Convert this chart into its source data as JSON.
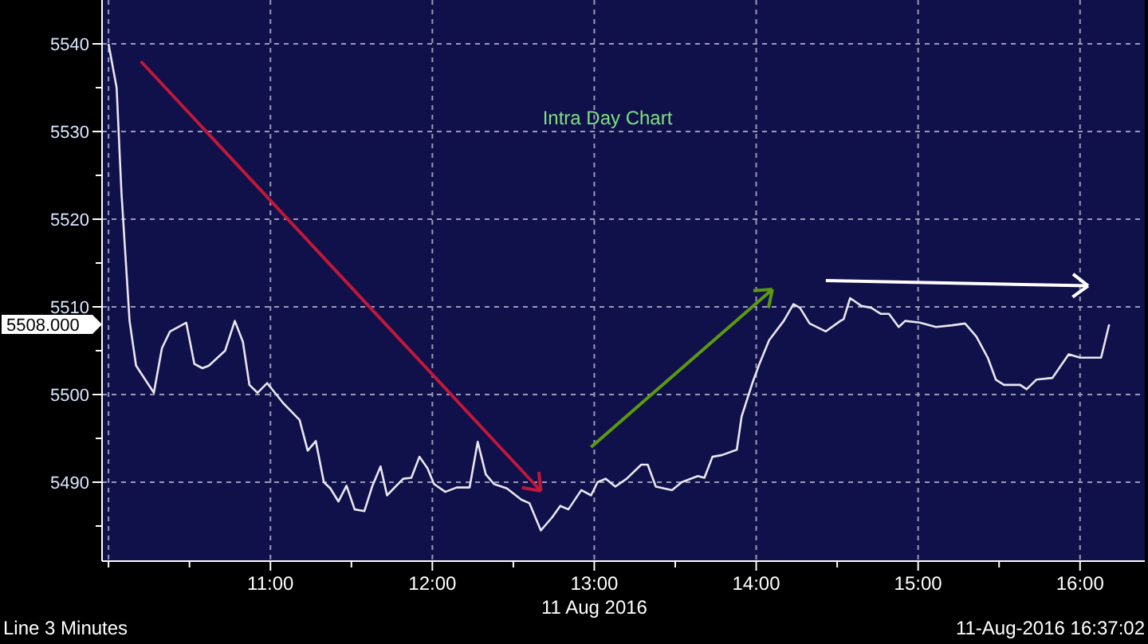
{
  "chart_data": {
    "type": "line",
    "title": "Intra Day Chart",
    "xlabel": "11 Aug 2016",
    "annotations": [
      "5508.000",
      "Line  3 Minutes",
      "11-Aug-2016 16:37:02"
    ],
    "x": [
      10.0,
      10.05,
      10.08,
      10.13,
      10.17,
      10.28,
      10.33,
      10.38,
      10.48,
      10.53,
      10.58,
      10.62,
      10.72,
      10.78,
      10.83,
      10.87,
      10.92,
      10.98,
      11.08,
      11.18,
      11.23,
      11.28,
      11.33,
      11.37,
      11.42,
      11.47,
      11.52,
      11.58,
      11.63,
      11.68,
      11.72,
      11.82,
      11.87,
      11.92,
      11.97,
      12.01,
      12.08,
      12.15,
      12.23,
      12.28,
      12.33,
      12.38,
      12.46,
      12.55,
      12.6,
      12.67,
      12.74,
      12.79,
      12.84,
      12.92,
      12.98,
      13.02,
      13.07,
      13.13,
      13.2,
      13.29,
      13.33,
      13.38,
      13.48,
      13.54,
      13.64,
      13.68,
      13.73,
      13.79,
      13.88,
      13.91,
      13.98,
      14.02,
      14.08,
      14.17,
      14.23,
      14.27,
      14.33,
      14.43,
      14.52,
      14.54,
      14.58,
      14.65,
      14.71,
      14.77,
      14.82,
      14.88,
      14.92,
      15.01,
      15.11,
      15.21,
      15.29,
      15.36,
      15.43,
      15.48,
      15.53,
      15.63,
      15.67,
      15.73,
      15.83,
      15.93,
      16.0,
      16.13,
      16.18
    ],
    "series": [
      {
        "color": "#e8e8f0",
        "values": [
          5540,
          5535,
          5523,
          5508.4,
          5503.3,
          5500.2,
          5505.3,
          5507.2,
          5508.2,
          5503.5,
          5503,
          5503.3,
          5505,
          5508.4,
          5506,
          5501.1,
          5500.2,
          5501.3,
          5499,
          5497.1,
          5493.6,
          5494.7,
          5490,
          5489.3,
          5487.8,
          5489.6,
          5486.9,
          5486.7,
          5489.6,
          5491.8,
          5488.5,
          5490.4,
          5490.5,
          5492.9,
          5491.6,
          5489.8,
          5488.9,
          5489.4,
          5489.4,
          5494.6,
          5490.9,
          5489.8,
          5489.3,
          5488,
          5487.6,
          5484.5,
          5486,
          5487.3,
          5486.9,
          5489.1,
          5488.5,
          5490,
          5490.4,
          5489.5,
          5490.4,
          5492,
          5492,
          5489.5,
          5489.1,
          5490,
          5490.7,
          5490.5,
          5492.9,
          5493.1,
          5493.7,
          5497.5,
          5501.5,
          5503.5,
          5506.2,
          5508.4,
          5510.3,
          5509.9,
          5508.1,
          5507.2,
          5508.4,
          5508.6,
          5511,
          5510.1,
          5509.9,
          5509.2,
          5509.2,
          5507.7,
          5508.4,
          5508.2,
          5507.7,
          5507.9,
          5508.1,
          5506.6,
          5504.2,
          5501.7,
          5501.1,
          5501.1,
          5500.6,
          5501.7,
          5501.9,
          5504.6,
          5504.2,
          5504.2,
          5508
        ]
      }
    ],
    "xlim": [
      9.96,
      16.4
    ],
    "xticks": [
      {
        "value": 10,
        "label": null
      },
      {
        "value": 10.5,
        "label": null
      },
      {
        "value": 11,
        "label": "11:00"
      },
      {
        "value": 11.5,
        "label": null
      },
      {
        "value": 12,
        "label": "12:00"
      },
      {
        "value": 12.5,
        "label": null
      },
      {
        "value": 13,
        "label": "13:00"
      },
      {
        "value": 13.5,
        "label": null
      },
      {
        "value": 14,
        "label": "14:00"
      },
      {
        "value": 14.5,
        "label": null
      },
      {
        "value": 15,
        "label": "15:00"
      },
      {
        "value": 15.5,
        "label": null
      },
      {
        "value": 16,
        "label": "16:00"
      }
    ],
    "ylim": [
      5481,
      5545
    ],
    "yticks": [
      {
        "value": 5485,
        "label": null
      },
      5490,
      {
        "value": 5495,
        "label": null
      },
      5500,
      {
        "value": 5505,
        "label": null
      },
      5510,
      {
        "value": 5515,
        "label": null
      },
      5520,
      {
        "value": 5525,
        "label": null
      },
      5530,
      {
        "value": 5535,
        "label": null
      },
      5540
    ],
    "grid": true,
    "marker": "none",
    "line_style": "solid"
  }
}
